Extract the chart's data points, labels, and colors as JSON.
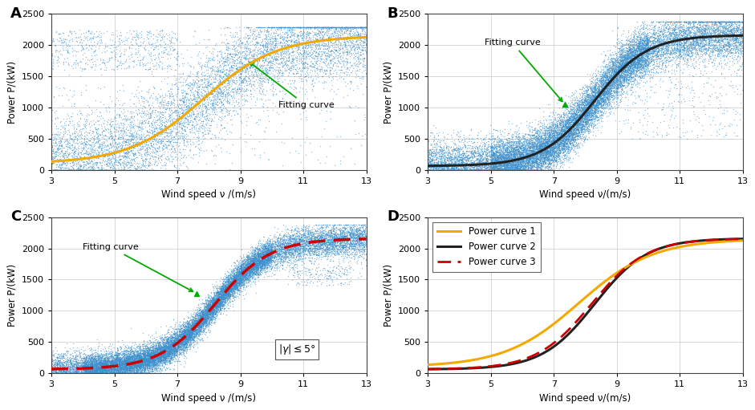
{
  "xlim": [
    3,
    13
  ],
  "ylim": [
    0,
    2500
  ],
  "xticks": [
    3,
    5,
    7,
    9,
    11,
    13
  ],
  "yticks": [
    0,
    500,
    1000,
    1500,
    2000,
    2500
  ],
  "xlabel_A": "Wind speed ν /(m/s)",
  "xlabel_B": "Wind speed ν/(m/s)",
  "xlabel_C": "Wind speed ν /(m/s)",
  "xlabel_D": "Wind speed ν/(m/s)",
  "ylabel": "Power P/(kW)",
  "scatter_color": "#3b8fcc",
  "curve1_color": "#f5a800",
  "curve2_color": "#222222",
  "curve3_color": "#cc0000",
  "annotation_color": "#00aa00",
  "panel_labels": [
    "A",
    "B",
    "C",
    "D"
  ],
  "legend_D": [
    "Power curve 1",
    "Power curve 2",
    "Power curve 3"
  ],
  "background_color": "#ffffff",
  "grid_color": "#c8c8c8"
}
